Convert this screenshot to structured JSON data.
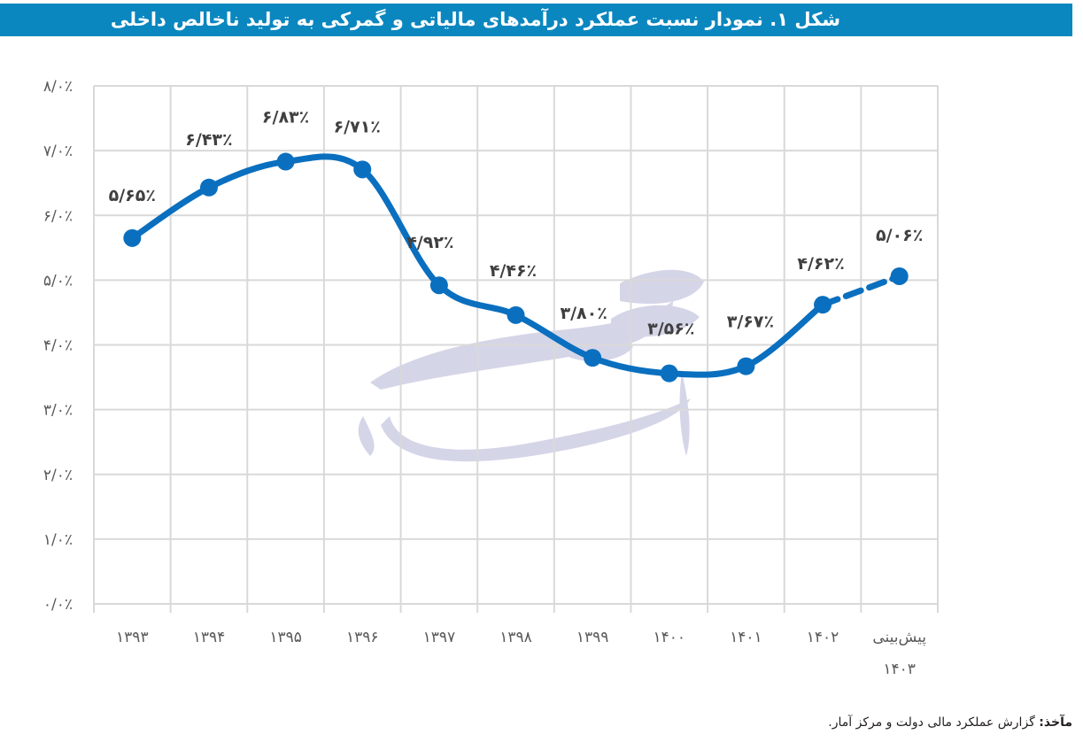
{
  "figure": {
    "title": "شکل ۱. نمودار نسبت عملکرد درآمدهای مالیاتی و گمرکی به تولید ناخالص داخلی",
    "source_label": "مآخذ:",
    "source_text": "گزارش عملکرد مالی دولت و مرکز آمار."
  },
  "colors": {
    "title_bar": "#0a87bf",
    "series_line": "#0a6fbf",
    "grid": "#d9d9d9",
    "axis_text": "#595959",
    "label_text": "#404040",
    "watermark": "#b3b3d6"
  },
  "chart_data": {
    "type": "line",
    "title": "شکل ۱. نمودار نسبت عملکرد درآمدهای مالیاتی و گمرکی به تولید ناخالص داخلی",
    "xlabel": "",
    "ylabel": "",
    "categories": [
      "۱۳۹۳",
      "۱۳۹۴",
      "۱۳۹۵",
      "۱۳۹۶",
      "۱۳۹۷",
      "۱۳۹۸",
      "۱۳۹۹",
      "۱۴۰۰",
      "۱۴۰۱",
      "۱۴۰۲",
      "پیش‌بینی ۱۴۰۳"
    ],
    "category_lines": [
      [
        "۱۳۹۳"
      ],
      [
        "۱۳۹۴"
      ],
      [
        "۱۳۹۵"
      ],
      [
        "۱۳۹۶"
      ],
      [
        "۱۳۹۷"
      ],
      [
        "۱۳۹۸"
      ],
      [
        "۱۳۹۹"
      ],
      [
        "۱۴۰۰"
      ],
      [
        "۱۴۰۱"
      ],
      [
        "۱۴۰۲"
      ],
      [
        "پیش‌بینی",
        "۱۴۰۳"
      ]
    ],
    "series": [
      {
        "name": "نسبت درآمدهای مالیاتی و گمرکی به تولید ناخالص داخلی",
        "values": [
          5.65,
          6.43,
          6.83,
          6.71,
          4.92,
          4.46,
          3.8,
          3.56,
          3.67,
          4.62,
          5.06
        ],
        "data_labels": [
          "۵/۶۵٪",
          "۶/۴۳٪",
          "۶/۸۳٪",
          "۶/۷۱٪",
          "۴/۹۲٪",
          "۴/۴۶٪",
          "۳/۸۰٪",
          "۳/۵۶٪",
          "۳/۶۷٪",
          "۴/۶۲٪",
          "۵/۰۶٪"
        ],
        "forecast_from_index": 9,
        "line_style": "solid, dashed for forecast segment"
      }
    ],
    "ylim": [
      0,
      8
    ],
    "yticks": [
      0,
      1,
      2,
      3,
      4,
      5,
      6,
      7,
      8
    ],
    "ytick_labels": [
      "۰/۰٪",
      "۱/۰٪",
      "۲/۰٪",
      "۳/۰٪",
      "۴/۰٪",
      "۵/۰٪",
      "۶/۰٪",
      "۷/۰٪",
      "۸/۰٪"
    ],
    "grid": true,
    "legend": "none",
    "unit": "percent"
  }
}
